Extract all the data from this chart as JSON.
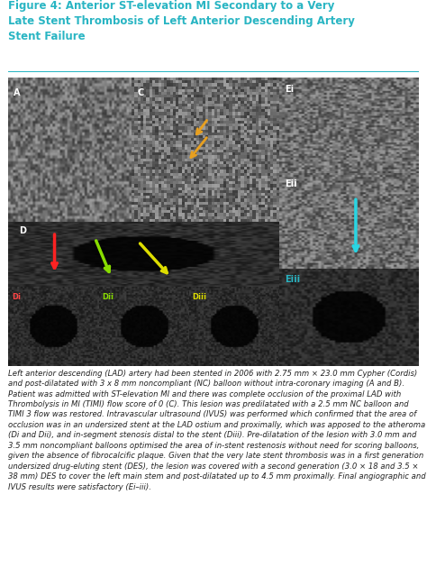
{
  "title_line1": "Figure 4: Anterior ST-elevation MI Secondary to a Very",
  "title_line2": "Late Stent Thrombosis of Left Anterior Descending Artery",
  "title_line3": "Stent Failure",
  "title_color": "#29b5c3",
  "separator_color": "#29b5c3",
  "bg_color": "#ffffff",
  "caption": "Left anterior descending (LAD) artery had been stented in 2006 with 2.75 mm × 23.0 mm Cypher (Cordis) and post-dilatated with 3 x 8 mm noncompliant (NC) balloon without intra-coronary imaging (A and B). Patient was admitted with ST-elevation MI and there was complete occlusion of the proximal LAD with Thrombolysis in MI (TIMI) flow score of 0 (C). This lesion was predilatated with a 2.5 mm NC balloon and TIMI 3 flow was restored. Intravascular ultrasound (IVUS) was performed which confirmed that the area of occlusion was in an undersized stent at the LAD ostium and proximally, which was apposed to the atheroma (Di and Dii), and in-segment stenosis distal to the stent (Diii). Pre-dilatation of the lesion with 3.0 mm and 3.5 mm noncompliant balloons optimised the area of in-stent restenosis without need for scoring balloons, given the absence of fibrocalcific plaque. Given that the very late stent thrombosis was in a first generation undersized drug-eluting stent (DES), the lesion was covered with a second generation (3.0 × 18 and 3.5 × 38 mm) DES to cover the left main stem and post-dilatated up to 4.5 mm proximally. Final angiographic and IVUS results were satisfactory (Ei–iii).",
  "image_bg": "#888888",
  "panel_border_color": "#cccccc"
}
